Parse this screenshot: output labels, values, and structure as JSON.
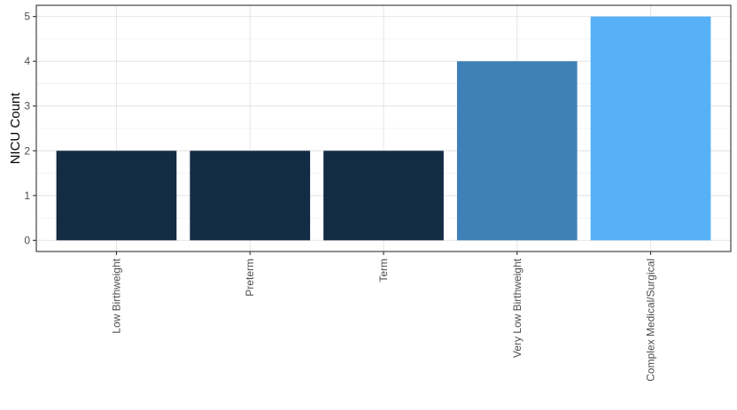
{
  "chart_data": {
    "type": "bar",
    "categories": [
      "Low Birthweight",
      "Preterm",
      "Term",
      "Very Low Birthweight",
      "Complex Medical/Surgical"
    ],
    "values": [
      2,
      2,
      2,
      4,
      5
    ],
    "bar_colors": [
      "#132B43",
      "#132B43",
      "#132B43",
      "#3E81B7",
      "#56B1F7"
    ],
    "xlabel": "",
    "ylabel": "NICU Count",
    "ylim": [
      -0.25,
      5.25
    ],
    "yticks": [
      0,
      1,
      2,
      3,
      4,
      5
    ],
    "grid": true,
    "legend": "none"
  }
}
